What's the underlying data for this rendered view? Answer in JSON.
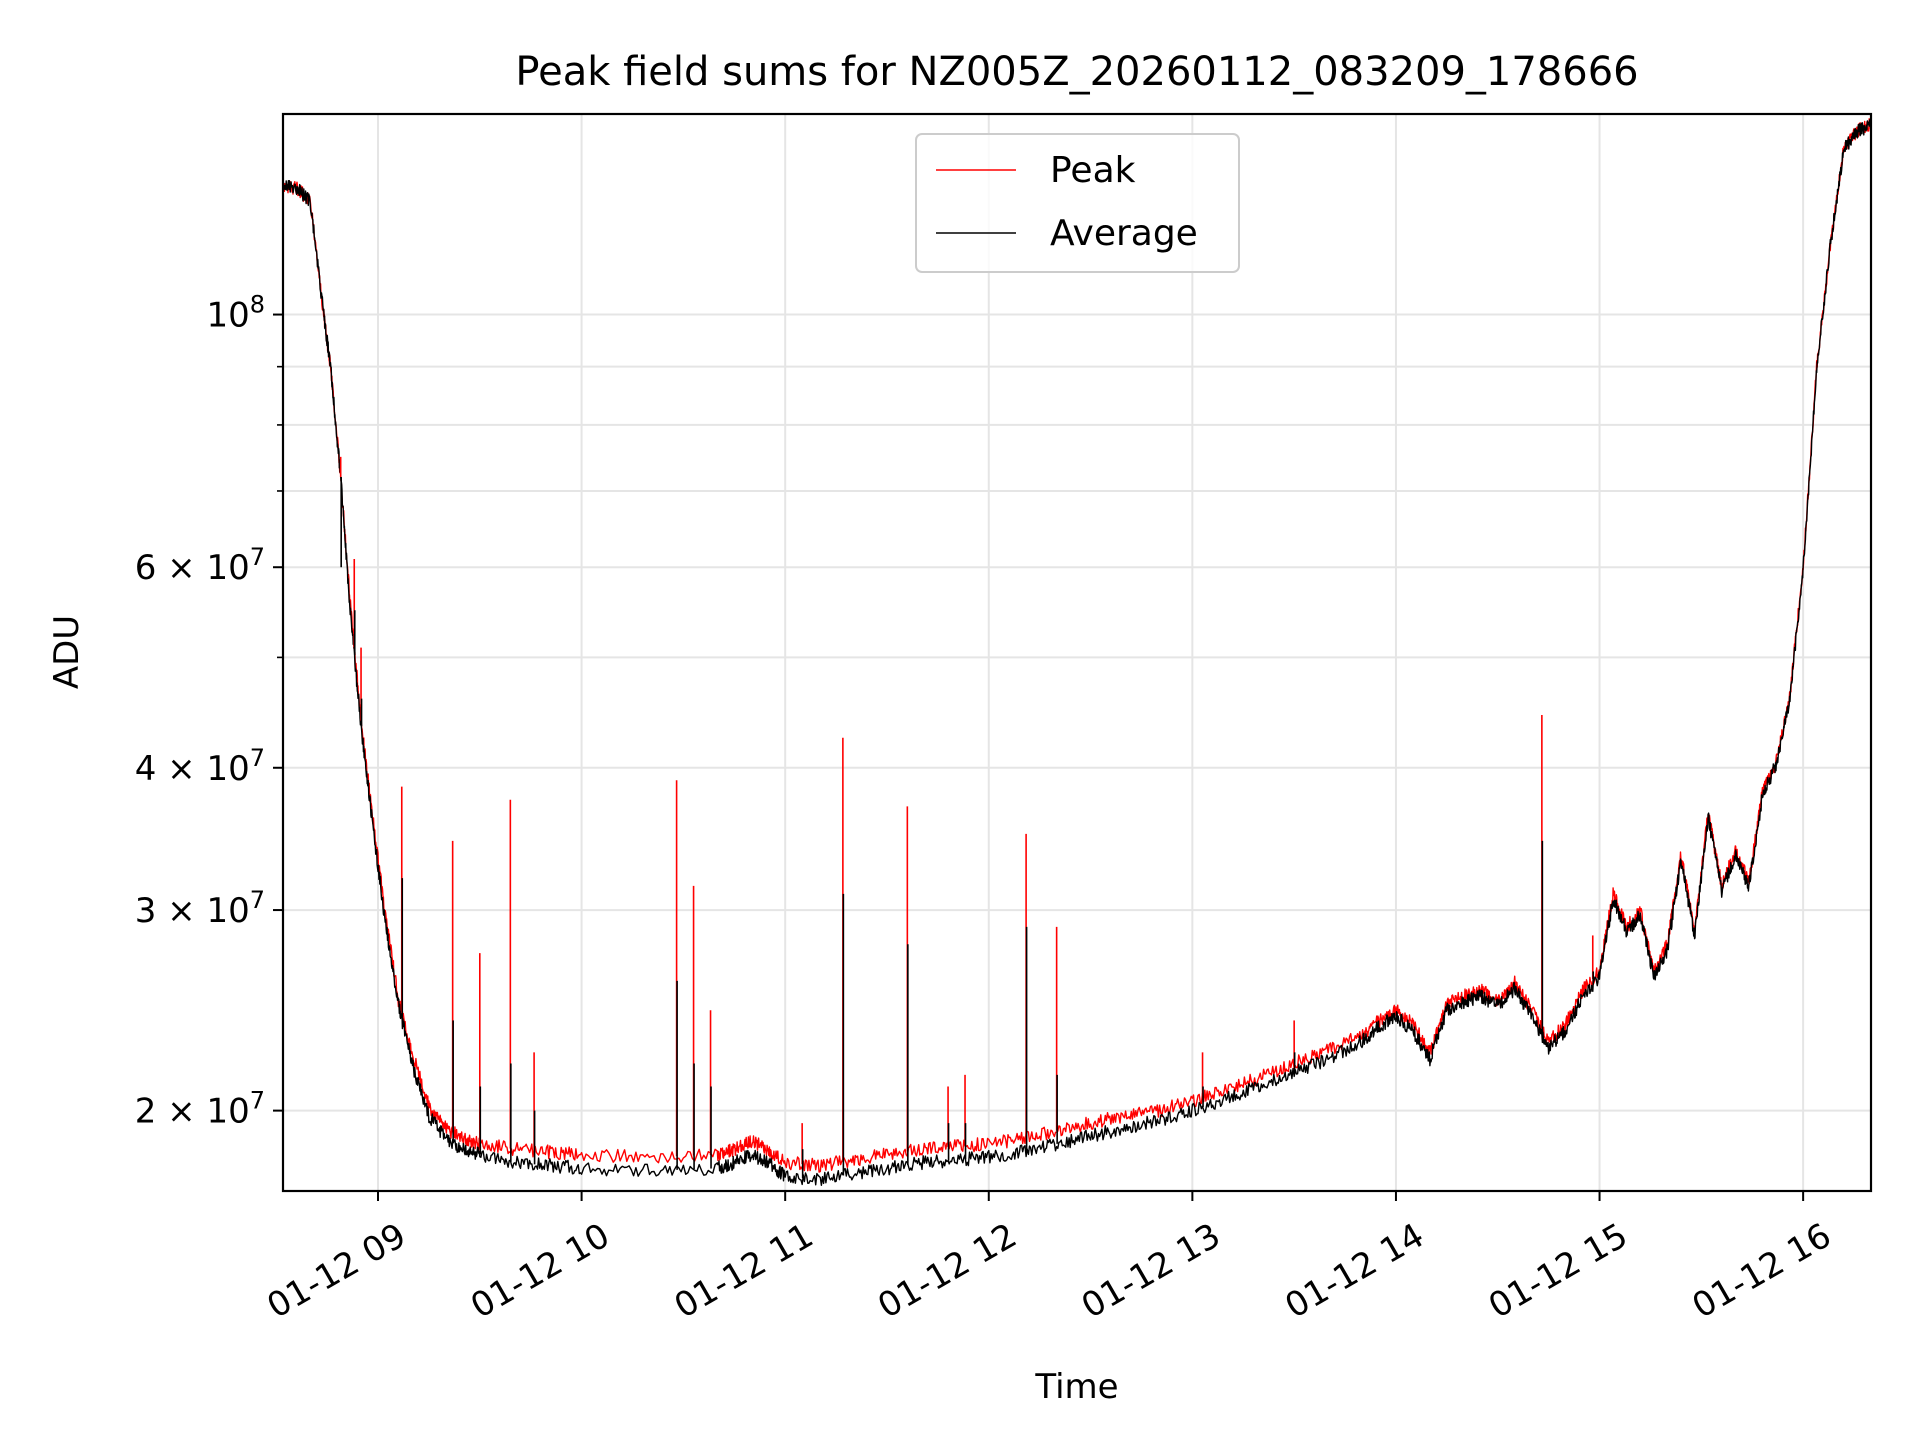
{
  "chart_data": {
    "type": "line",
    "title": "Peak field sums for NZ005Z_20260112_083209_178666",
    "xlabel": "Time",
    "ylabel": "ADU",
    "xlim": [
      "2026-01-12 08:32",
      "2026-01-12 16:20"
    ],
    "ylim": [
      17000000,
      150000000
    ],
    "yscale": "log",
    "grid": true,
    "legend_position": "upper-center",
    "x_ticks": [
      {
        "value": "2026-01-12 09:00",
        "label": "01-12 09"
      },
      {
        "value": "2026-01-12 10:00",
        "label": "01-12 10"
      },
      {
        "value": "2026-01-12 11:00",
        "label": "01-12 11"
      },
      {
        "value": "2026-01-12 12:00",
        "label": "01-12 12"
      },
      {
        "value": "2026-01-12 13:00",
        "label": "01-12 13"
      },
      {
        "value": "2026-01-12 14:00",
        "label": "01-12 14"
      },
      {
        "value": "2026-01-12 15:00",
        "label": "01-12 15"
      },
      {
        "value": "2026-01-12 16:00",
        "label": "01-12 16"
      }
    ],
    "y_ticks": [
      {
        "value": 20000000,
        "label": "2 × 10^7",
        "mantissa": "2 × 10",
        "exponent": "7"
      },
      {
        "value": 30000000,
        "label": "3 × 10^7",
        "mantissa": "3 × 10",
        "exponent": "7"
      },
      {
        "value": 40000000,
        "label": "4 × 10^7",
        "mantissa": "4 × 10",
        "exponent": "7"
      },
      {
        "value": 60000000,
        "label": "6 × 10^7",
        "mantissa": "6 × 10",
        "exponent": "7"
      },
      {
        "value": 100000000,
        "label": "10^8",
        "mantissa": "10",
        "exponent": "8"
      }
    ],
    "y_minor_ticks": [
      50000000,
      70000000,
      80000000,
      90000000
    ],
    "series": [
      {
        "name": "Peak",
        "color": "#ff0000",
        "x": [
          "2026-01-12 08:32",
          "2026-01-12 08:36",
          "2026-01-12 08:40",
          "2026-01-12 08:44",
          "2026-01-12 08:46",
          "2026-01-12 08:49",
          "2026-01-12 08:52",
          "2026-01-12 08:55",
          "2026-01-12 08:58",
          "2026-01-12 09:02",
          "2026-01-12 09:06",
          "2026-01-12 09:10",
          "2026-01-12 09:15",
          "2026-01-12 09:20",
          "2026-01-12 09:25",
          "2026-01-12 09:30",
          "2026-01-12 09:40",
          "2026-01-12 09:50",
          "2026-01-12 10:00",
          "2026-01-12 10:20",
          "2026-01-12 10:40",
          "2026-01-12 10:45",
          "2026-01-12 10:50",
          "2026-01-12 10:55",
          "2026-01-12 11:00",
          "2026-01-12 11:10",
          "2026-01-12 11:20",
          "2026-01-12 11:30",
          "2026-01-12 11:40",
          "2026-01-12 11:50",
          "2026-01-12 12:00",
          "2026-01-12 12:10",
          "2026-01-12 12:20",
          "2026-01-12 12:30",
          "2026-01-12 12:40",
          "2026-01-12 12:50",
          "2026-01-12 13:00",
          "2026-01-12 13:10",
          "2026-01-12 13:20",
          "2026-01-12 13:30",
          "2026-01-12 13:40",
          "2026-01-12 13:50",
          "2026-01-12 13:55",
          "2026-01-12 14:00",
          "2026-01-12 14:05",
          "2026-01-12 14:10",
          "2026-01-12 14:15",
          "2026-01-12 14:20",
          "2026-01-12 14:25",
          "2026-01-12 14:30",
          "2026-01-12 14:35",
          "2026-01-12 14:40",
          "2026-01-12 14:45",
          "2026-01-12 14:50",
          "2026-01-12 14:55",
          "2026-01-12 15:00",
          "2026-01-12 15:04",
          "2026-01-12 15:08",
          "2026-01-12 15:12",
          "2026-01-12 15:16",
          "2026-01-12 15:20",
          "2026-01-12 15:24",
          "2026-01-12 15:28",
          "2026-01-12 15:32",
          "2026-01-12 15:36",
          "2026-01-12 15:40",
          "2026-01-12 15:44",
          "2026-01-12 15:48",
          "2026-01-12 15:52",
          "2026-01-12 15:56",
          "2026-01-12 16:00",
          "2026-01-12 16:04",
          "2026-01-12 16:08",
          "2026-01-12 16:12",
          "2026-01-12 16:16",
          "2026-01-12 16:20"
        ],
        "values": [
          130000000,
          129000000,
          126000000,
          100000000,
          90000000,
          72000000,
          55000000,
          44000000,
          37000000,
          30000000,
          25000000,
          22500000,
          20200000,
          19300000,
          18900000,
          18700000,
          18500000,
          18400000,
          18300000,
          18200000,
          18300000,
          18500000,
          18800000,
          18500000,
          18000000,
          17900000,
          18100000,
          18300000,
          18500000,
          18600000,
          18700000,
          18900000,
          19200000,
          19500000,
          19800000,
          20000000,
          20400000,
          20900000,
          21400000,
          22000000,
          22600000,
          23300000,
          24000000,
          24500000,
          23800000,
          22500000,
          24800000,
          25200000,
          25500000,
          25000000,
          25900000,
          24500000,
          23000000,
          23800000,
          25500000,
          26500000,
          31000000,
          29000000,
          30000000,
          26500000,
          28000000,
          33500000,
          28800000,
          36500000,
          31500000,
          33800000,
          31800000,
          38000000,
          40500000,
          46000000,
          60000000,
          90000000,
          115000000,
          140000000,
          145000000,
          147000000
        ]
      },
      {
        "name": "Average",
        "color": "#000000",
        "x": [
          "2026-01-12 08:32",
          "2026-01-12 08:36",
          "2026-01-12 08:40",
          "2026-01-12 08:44",
          "2026-01-12 08:46",
          "2026-01-12 08:49",
          "2026-01-12 08:52",
          "2026-01-12 08:55",
          "2026-01-12 08:58",
          "2026-01-12 09:02",
          "2026-01-12 09:06",
          "2026-01-12 09:10",
          "2026-01-12 09:15",
          "2026-01-12 09:20",
          "2026-01-12 09:25",
          "2026-01-12 09:30",
          "2026-01-12 09:40",
          "2026-01-12 09:50",
          "2026-01-12 10:00",
          "2026-01-12 10:20",
          "2026-01-12 10:40",
          "2026-01-12 10:45",
          "2026-01-12 10:50",
          "2026-01-12 10:55",
          "2026-01-12 11:00",
          "2026-01-12 11:10",
          "2026-01-12 11:20",
          "2026-01-12 11:30",
          "2026-01-12 11:40",
          "2026-01-12 11:50",
          "2026-01-12 12:00",
          "2026-01-12 12:10",
          "2026-01-12 12:20",
          "2026-01-12 12:30",
          "2026-01-12 12:40",
          "2026-01-12 12:50",
          "2026-01-12 13:00",
          "2026-01-12 13:10",
          "2026-01-12 13:20",
          "2026-01-12 13:30",
          "2026-01-12 13:40",
          "2026-01-12 13:50",
          "2026-01-12 13:55",
          "2026-01-12 14:00",
          "2026-01-12 14:05",
          "2026-01-12 14:10",
          "2026-01-12 14:15",
          "2026-01-12 14:20",
          "2026-01-12 14:25",
          "2026-01-12 14:30",
          "2026-01-12 14:35",
          "2026-01-12 14:40",
          "2026-01-12 14:45",
          "2026-01-12 14:50",
          "2026-01-12 14:55",
          "2026-01-12 15:00",
          "2026-01-12 15:04",
          "2026-01-12 15:08",
          "2026-01-12 15:12",
          "2026-01-12 15:16",
          "2026-01-12 15:20",
          "2026-01-12 15:24",
          "2026-01-12 15:28",
          "2026-01-12 15:32",
          "2026-01-12 15:36",
          "2026-01-12 15:40",
          "2026-01-12 15:44",
          "2026-01-12 15:48",
          "2026-01-12 15:52",
          "2026-01-12 15:56",
          "2026-01-12 16:00",
          "2026-01-12 16:04",
          "2026-01-12 16:08",
          "2026-01-12 16:12",
          "2026-01-12 16:16",
          "2026-01-12 16:20"
        ],
        "values": [
          130000000,
          129000000,
          126000000,
          100000000,
          90000000,
          72000000,
          54000000,
          43500000,
          36500000,
          29500000,
          24800000,
          22000000,
          19800000,
          18900000,
          18500000,
          18300000,
          18000000,
          17900000,
          17800000,
          17700000,
          17800000,
          18000000,
          18300000,
          18000000,
          17500000,
          17400000,
          17600000,
          17800000,
          18000000,
          18100000,
          18200000,
          18400000,
          18700000,
          19000000,
          19300000,
          19600000,
          20000000,
          20500000,
          21000000,
          21600000,
          22200000,
          23000000,
          23700000,
          24200000,
          23500000,
          22200000,
          24500000,
          24900000,
          25200000,
          24700000,
          25600000,
          24200000,
          22700000,
          23500000,
          25200000,
          26200000,
          30700000,
          28700000,
          29700000,
          26200000,
          27700000,
          33200000,
          28500000,
          36200000,
          31200000,
          33500000,
          31500000,
          37800000,
          40300000,
          45800000,
          59800000,
          89800000,
          114800000,
          139800000,
          144800000,
          146800000
        ]
      }
    ],
    "spikes": [
      {
        "x": "2026-01-12 08:49",
        "peak": 75000000,
        "average": 60000000
      },
      {
        "x": "2026-01-12 08:53",
        "peak": 61000000,
        "average": 55000000
      },
      {
        "x": "2026-01-12 08:55",
        "peak": 51000000,
        "average": 46000000
      },
      {
        "x": "2026-01-12 09:07",
        "peak": 38500000,
        "average": 32000000
      },
      {
        "x": "2026-01-12 09:22",
        "peak": 34500000,
        "average": 24000000
      },
      {
        "x": "2026-01-12 09:30",
        "peak": 27500000,
        "average": 21000000
      },
      {
        "x": "2026-01-12 09:39",
        "peak": 37500000,
        "average": 22000000
      },
      {
        "x": "2026-01-12 09:46",
        "peak": 22500000,
        "average": 20000000
      },
      {
        "x": "2026-01-12 10:28",
        "peak": 39000000,
        "average": 26000000
      },
      {
        "x": "2026-01-12 10:33",
        "peak": 31500000,
        "average": 22000000
      },
      {
        "x": "2026-01-12 10:38",
        "peak": 24500000,
        "average": 21000000
      },
      {
        "x": "2026-01-12 11:05",
        "peak": 19500000,
        "average": 18500000
      },
      {
        "x": "2026-01-12 11:17",
        "peak": 42500000,
        "average": 31000000
      },
      {
        "x": "2026-01-12 11:36",
        "peak": 37000000,
        "average": 28000000
      },
      {
        "x": "2026-01-12 11:48",
        "peak": 21000000,
        "average": 19500000
      },
      {
        "x": "2026-01-12 11:53",
        "peak": 21500000,
        "average": 19500000
      },
      {
        "x": "2026-01-12 12:11",
        "peak": 35000000,
        "average": 29000000
      },
      {
        "x": "2026-01-12 12:20",
        "peak": 29000000,
        "average": 21500000
      },
      {
        "x": "2026-01-12 13:03",
        "peak": 22500000,
        "average": 21000000
      },
      {
        "x": "2026-01-12 13:30",
        "peak": 24000000,
        "average": 22500000
      },
      {
        "x": "2026-01-12 14:43",
        "peak": 44500000,
        "average": 34500000
      },
      {
        "x": "2026-01-12 14:58",
        "peak": 28500000,
        "average": 26500000
      }
    ]
  }
}
